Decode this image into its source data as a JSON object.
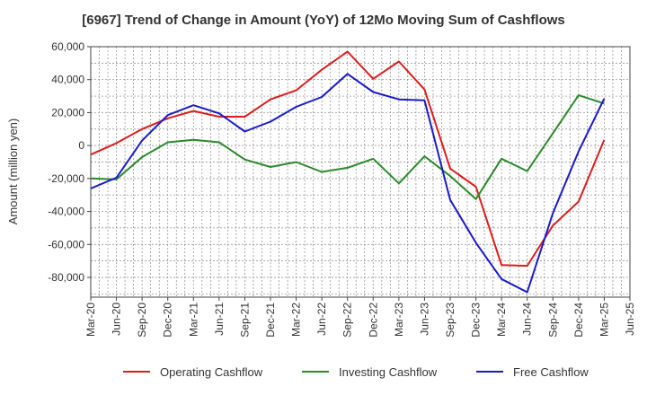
{
  "chart_data": {
    "type": "line",
    "title": "[6967]  Trend of Change in Amount (YoY) of 12Mo Moving Sum of Cashflows",
    "xlabel": "",
    "ylabel": "Amount (million yen)",
    "ylim": [
      -92000,
      60000
    ],
    "yticks": [
      60000,
      40000,
      20000,
      0,
      -20000,
      -40000,
      -60000,
      -80000
    ],
    "ytick_labels": [
      "60,000",
      "40,000",
      "20,000",
      "0",
      "-20,000",
      "-40,000",
      "-60,000",
      "-80,000"
    ],
    "x_tick_labels": [
      "Mar-20",
      "Jun-20",
      "Sep-20",
      "Dec-20",
      "Mar-21",
      "Jun-21",
      "Sep-21",
      "Dec-21",
      "Mar-22",
      "Jun-22",
      "Sep-22",
      "Dec-22",
      "Mar-23",
      "Jun-23",
      "Sep-23",
      "Dec-23",
      "Mar-24",
      "Jun-24",
      "Sep-24",
      "Dec-24",
      "Mar-25",
      "Jun-25"
    ],
    "grid": true,
    "legend_position": "bottom",
    "series": [
      {
        "name": "Operating Cashflow",
        "color": "#dd1c1c",
        "values": [
          -5500,
          1500,
          10000,
          16500,
          21000,
          17500,
          17500,
          28000,
          33500,
          46000,
          57000,
          40500,
          51000,
          34000,
          -14000,
          -25000,
          -72500,
          -73000,
          -48500,
          -34000,
          3500,
          null
        ]
      },
      {
        "name": "Investing Cashflow",
        "color": "#2a8a2a",
        "values": [
          -20000,
          -20500,
          -7000,
          2000,
          3500,
          2000,
          -8500,
          -13000,
          -10000,
          -16000,
          -13500,
          -8000,
          -23000,
          -6500,
          -18500,
          -32500,
          -8000,
          -15500,
          7500,
          30500,
          25500,
          null
        ]
      },
      {
        "name": "Free Cashflow",
        "color": "#1a1acc",
        "values": [
          -26000,
          -19500,
          3000,
          18500,
          24500,
          19500,
          8500,
          14500,
          23500,
          29500,
          43500,
          32500,
          28000,
          27500,
          -33000,
          -59000,
          -81000,
          -89000,
          -41000,
          -3500,
          28500,
          null
        ]
      }
    ]
  }
}
